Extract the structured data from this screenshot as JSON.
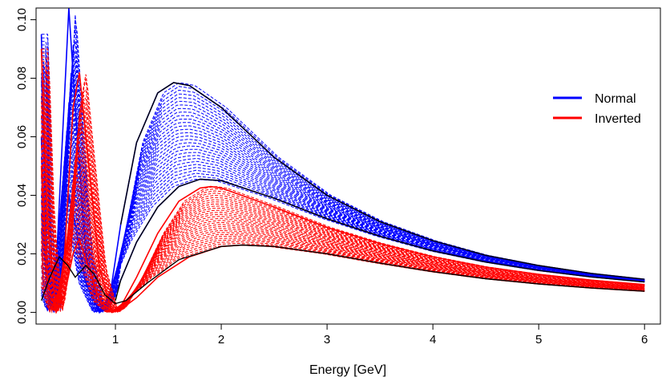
{
  "chart_data": {
    "type": "line",
    "title": "",
    "xlabel": "Energy [GeV]",
    "ylabel": "",
    "xlim": [
      0.25,
      6.15
    ],
    "ylim": [
      -0.004,
      0.104
    ],
    "x_ticks": [
      1,
      2,
      3,
      4,
      5,
      6
    ],
    "x_tick_labels": [
      "1",
      "2",
      "3",
      "4",
      "5",
      "6"
    ],
    "y_ticks": [
      0.0,
      0.02,
      0.04,
      0.06,
      0.08,
      0.1
    ],
    "y_tick_labels": [
      "0.00",
      "0.02",
      "0.04",
      "0.06",
      "0.08",
      "0.10"
    ],
    "grid": false,
    "legend_position": "right",
    "colors": {
      "Normal": "#0000ff",
      "Inverted": "#ff0000",
      "envelope": "#000000"
    },
    "series": [
      {
        "name": "Normal",
        "band_curves": 30,
        "upper_envelope": [
          [
            0.3,
            0.095
          ],
          [
            0.35,
            0.02
          ],
          [
            0.42,
            0.0
          ],
          [
            0.5,
            0.06
          ],
          [
            0.56,
            0.104
          ],
          [
            0.62,
            0.07
          ],
          [
            0.72,
            0.02
          ],
          [
            0.85,
            0.0
          ],
          [
            0.95,
            0.006
          ],
          [
            1.05,
            0.03
          ],
          [
            1.2,
            0.058
          ],
          [
            1.4,
            0.075
          ],
          [
            1.55,
            0.0785
          ],
          [
            1.7,
            0.0775
          ],
          [
            2.0,
            0.07
          ],
          [
            2.5,
            0.053
          ],
          [
            3.0,
            0.04
          ],
          [
            3.5,
            0.031
          ],
          [
            4.0,
            0.0245
          ],
          [
            4.5,
            0.0195
          ],
          [
            5.0,
            0.016
          ],
          [
            5.5,
            0.0133
          ],
          [
            6.0,
            0.0113
          ]
        ],
        "lower_envelope": [
          [
            0.3,
            0.06
          ],
          [
            0.35,
            0.008
          ],
          [
            0.42,
            0.0
          ],
          [
            0.5,
            0.018
          ],
          [
            0.56,
            0.04
          ],
          [
            0.62,
            0.03
          ],
          [
            0.72,
            0.01
          ],
          [
            0.85,
            0.0
          ],
          [
            0.95,
            0.002
          ],
          [
            1.05,
            0.011
          ],
          [
            1.2,
            0.024
          ],
          [
            1.4,
            0.036
          ],
          [
            1.6,
            0.043
          ],
          [
            1.8,
            0.0455
          ],
          [
            2.0,
            0.045
          ],
          [
            2.5,
            0.039
          ],
          [
            3.0,
            0.032
          ],
          [
            3.5,
            0.026
          ],
          [
            4.0,
            0.021
          ],
          [
            4.5,
            0.0172
          ],
          [
            5.0,
            0.0143
          ],
          [
            5.5,
            0.0121
          ],
          [
            6.0,
            0.0104
          ]
        ]
      },
      {
        "name": "Inverted",
        "band_curves": 30,
        "upper_envelope": [
          [
            0.3,
            0.09
          ],
          [
            0.36,
            0.03
          ],
          [
            0.44,
            0.0
          ],
          [
            0.52,
            0.02
          ],
          [
            0.6,
            0.07
          ],
          [
            0.66,
            0.082
          ],
          [
            0.72,
            0.06
          ],
          [
            0.85,
            0.015
          ],
          [
            0.97,
            0.0
          ],
          [
            1.05,
            0.002
          ],
          [
            1.2,
            0.012
          ],
          [
            1.4,
            0.027
          ],
          [
            1.6,
            0.038
          ],
          [
            1.8,
            0.0425
          ],
          [
            1.9,
            0.043
          ],
          [
            2.0,
            0.0425
          ],
          [
            2.5,
            0.036
          ],
          [
            3.0,
            0.029
          ],
          [
            3.5,
            0.0235
          ],
          [
            4.0,
            0.019
          ],
          [
            4.5,
            0.0155
          ],
          [
            5.0,
            0.013
          ],
          [
            5.5,
            0.011
          ],
          [
            6.0,
            0.0095
          ]
        ],
        "lower_envelope": [
          [
            0.3,
            0.05
          ],
          [
            0.36,
            0.01
          ],
          [
            0.44,
            0.0
          ],
          [
            0.52,
            0.006
          ],
          [
            0.6,
            0.02
          ],
          [
            0.66,
            0.025
          ],
          [
            0.72,
            0.018
          ],
          [
            0.85,
            0.004
          ],
          [
            0.97,
            0.0
          ],
          [
            1.05,
            0.001
          ],
          [
            1.2,
            0.005
          ],
          [
            1.4,
            0.012
          ],
          [
            1.7,
            0.019
          ],
          [
            2.0,
            0.0225
          ],
          [
            2.2,
            0.023
          ],
          [
            2.5,
            0.0225
          ],
          [
            3.0,
            0.02
          ],
          [
            3.5,
            0.0168
          ],
          [
            4.0,
            0.0139
          ],
          [
            4.5,
            0.0115
          ],
          [
            5.0,
            0.0097
          ],
          [
            5.5,
            0.0083
          ],
          [
            6.0,
            0.0072
          ]
        ]
      }
    ],
    "black_reference_curves": [
      [
        [
          0.3,
          0.004
        ],
        [
          0.38,
          0.012
        ],
        [
          0.47,
          0.019
        ],
        [
          0.55,
          0.016
        ],
        [
          0.62,
          0.012
        ],
        [
          0.72,
          0.016
        ],
        [
          0.8,
          0.013
        ],
        [
          0.9,
          0.006
        ],
        [
          1.0,
          0.003
        ],
        [
          1.1,
          0.004
        ],
        [
          1.3,
          0.01
        ],
        [
          1.6,
          0.018
        ],
        [
          2.0,
          0.0225
        ],
        [
          2.2,
          0.023
        ],
        [
          2.5,
          0.0225
        ],
        [
          3.0,
          0.02
        ],
        [
          3.5,
          0.0168
        ],
        [
          4.0,
          0.0139
        ],
        [
          4.5,
          0.0115
        ],
        [
          5.0,
          0.0097
        ],
        [
          5.5,
          0.0083
        ],
        [
          6.0,
          0.0072
        ]
      ],
      [
        [
          1.0,
          0.004
        ],
        [
          1.05,
          0.011
        ],
        [
          1.2,
          0.024
        ],
        [
          1.4,
          0.036
        ],
        [
          1.6,
          0.043
        ],
        [
          1.8,
          0.0455
        ],
        [
          2.0,
          0.045
        ],
        [
          2.5,
          0.039
        ],
        [
          3.0,
          0.032
        ],
        [
          3.5,
          0.026
        ],
        [
          4.0,
          0.021
        ],
        [
          4.5,
          0.0172
        ],
        [
          5.0,
          0.0143
        ],
        [
          5.5,
          0.0121
        ],
        [
          6.0,
          0.0104
        ]
      ],
      [
        [
          1.05,
          0.03
        ],
        [
          1.2,
          0.058
        ],
        [
          1.4,
          0.075
        ],
        [
          1.55,
          0.0785
        ],
        [
          1.7,
          0.0775
        ],
        [
          2.0,
          0.07
        ],
        [
          2.5,
          0.053
        ],
        [
          3.0,
          0.04
        ],
        [
          3.5,
          0.031
        ],
        [
          4.0,
          0.0245
        ],
        [
          4.5,
          0.0195
        ],
        [
          5.0,
          0.016
        ],
        [
          5.5,
          0.0133
        ],
        [
          6.0,
          0.0113
        ]
      ]
    ],
    "legend": [
      {
        "label": "Normal",
        "color": "#0000ff"
      },
      {
        "label": "Inverted",
        "color": "#ff0000"
      }
    ]
  }
}
